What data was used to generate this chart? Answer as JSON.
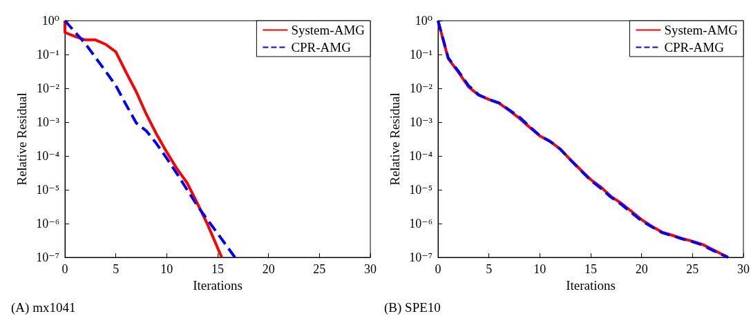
{
  "chart_data": [
    {
      "type": "line",
      "xlabel": "Iterations",
      "ylabel": "Relative Residual",
      "log": "y",
      "xlim": [
        0,
        30
      ],
      "xticks": [
        0,
        5,
        10,
        15,
        20,
        25,
        30
      ],
      "ylim": [
        1e-07,
        1
      ],
      "yticks": [
        {
          "value": 1,
          "label": "10⁰"
        },
        {
          "value": 0.1,
          "label": "10⁻¹"
        },
        {
          "value": 0.01,
          "label": "10⁻²"
        },
        {
          "value": 0.001,
          "label": "10⁻³"
        },
        {
          "value": 0.0001,
          "label": "10⁻⁴"
        },
        {
          "value": 1e-05,
          "label": "10⁻⁵"
        },
        {
          "value": 1e-06,
          "label": "10⁻⁶"
        },
        {
          "value": 1e-07,
          "label": "10⁻⁷"
        }
      ],
      "grid": false,
      "legend": "top right",
      "marker": "none",
      "annotations": [
        "(A) mx1041"
      ],
      "series": [
        {
          "name": "System-AMG",
          "color": "#ff0000",
          "line_style": "solid",
          "x": [
            0,
            0,
            1,
            2,
            3,
            4,
            5,
            6,
            7,
            8,
            9,
            10,
            11,
            12,
            13,
            14,
            15.4
          ],
          "values": [
            1,
            0.45,
            0.34,
            0.27,
            0.27,
            0.2,
            0.12,
            0.03,
            0.008,
            0.0017,
            0.00044,
            0.00013,
            4.2e-05,
            1.6e-05,
            4e-06,
            9.6e-07,
            1e-07
          ]
        },
        {
          "name": "CPR-AMG",
          "color": "#0000ff",
          "line_style": "dashed",
          "x": [
            0,
            2,
            4,
            5,
            6,
            7,
            8,
            9,
            10,
            11,
            12,
            13,
            14,
            15,
            16.7
          ],
          "values": [
            1,
            0.21,
            0.032,
            0.012,
            0.0033,
            0.00095,
            0.00055,
            0.00023,
            8.5e-05,
            3e-05,
            1e-05,
            3.4e-06,
            1.3e-06,
            5.1e-07,
            1e-07
          ]
        }
      ]
    },
    {
      "type": "line",
      "xlabel": "Iterations",
      "ylabel": "Relative Residual",
      "log": "y",
      "xlim": [
        0,
        30
      ],
      "xticks": [
        0,
        5,
        10,
        15,
        20,
        25,
        30
      ],
      "ylim": [
        1e-07,
        1
      ],
      "yticks": [
        {
          "value": 1,
          "label": "10⁰"
        },
        {
          "value": 0.1,
          "label": "10⁻¹"
        },
        {
          "value": 0.01,
          "label": "10⁻²"
        },
        {
          "value": 0.001,
          "label": "10⁻³"
        },
        {
          "value": 0.0001,
          "label": "10⁻⁴"
        },
        {
          "value": 1e-05,
          "label": "10⁻⁵"
        },
        {
          "value": 1e-06,
          "label": "10⁻⁶"
        },
        {
          "value": 1e-07,
          "label": "10⁻⁷"
        }
      ],
      "grid": false,
      "legend": "top right",
      "marker": "none",
      "annotations": [
        "(B) SPE10"
      ],
      "series": [
        {
          "name": "System-AMG",
          "color": "#ff0000",
          "line_style": "solid",
          "x": [
            0,
            1,
            2,
            3,
            4,
            5,
            6,
            7,
            8,
            9,
            10,
            11,
            12,
            13,
            14,
            15,
            16,
            17,
            18,
            19,
            20,
            21,
            22,
            23,
            24,
            25,
            26,
            27,
            28.5
          ],
          "values": [
            1,
            0.076,
            0.03,
            0.011,
            0.0063,
            0.0047,
            0.0036,
            0.0022,
            0.0013,
            0.0007,
            0.00039,
            0.00027,
            0.00016,
            7.8e-05,
            3.9e-05,
            2e-05,
            1.2e-05,
            6.3e-06,
            4e-06,
            2.3e-06,
            1.3e-06,
            8.3e-07,
            5.6e-07,
            4.5e-07,
            3.6e-07,
            3e-07,
            2.4e-07,
            1.7e-07,
            1e-07
          ]
        },
        {
          "name": "CPR-AMG",
          "color": "#0000ff",
          "line_style": "dashed",
          "x": [
            0,
            1,
            2,
            3,
            4,
            5,
            6,
            7,
            8,
            9,
            10,
            11,
            12,
            13,
            14,
            15,
            16,
            17,
            18,
            19,
            20,
            21,
            22,
            23,
            24,
            25,
            26,
            27,
            28.5
          ],
          "values": [
            1,
            0.08,
            0.032,
            0.012,
            0.0064,
            0.0047,
            0.0037,
            0.0023,
            0.0014,
            0.00074,
            0.0004,
            0.00027,
            0.00016,
            7.7e-05,
            3.8e-05,
            1.9e-05,
            1.1e-05,
            6e-06,
            3.7e-06,
            2.1e-06,
            1.2e-06,
            8e-07,
            5.4e-07,
            4.4e-07,
            3.5e-07,
            2.9e-07,
            2.3e-07,
            1.6e-07,
            1e-07
          ]
        }
      ]
    }
  ]
}
